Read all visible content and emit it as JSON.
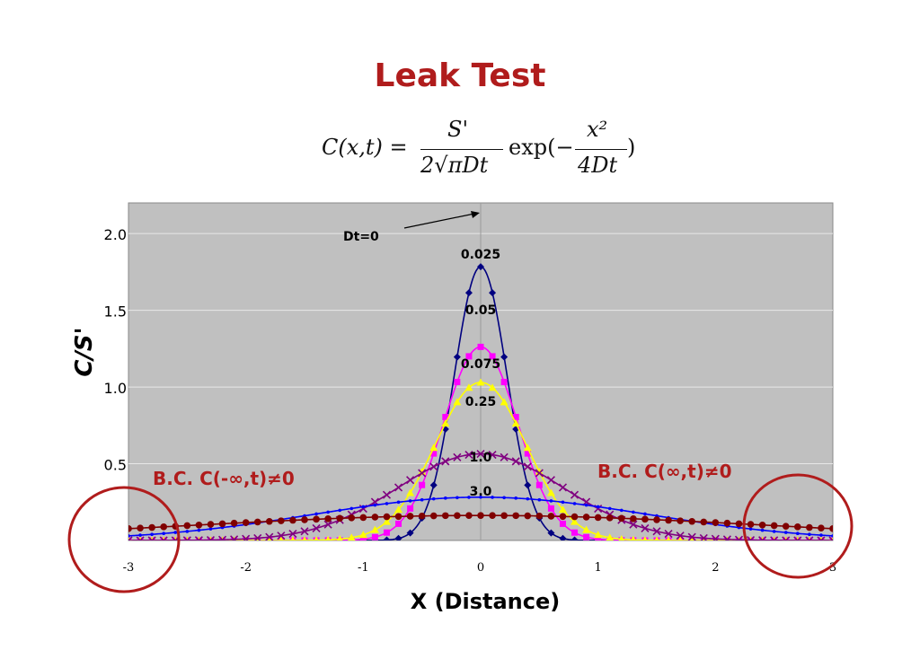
{
  "title": "Leak Test",
  "formula": {
    "lhs": "C(x,t) =",
    "numerator": "S'",
    "denominator": "2√πDt",
    "exp": "exp(−",
    "exp_numerator": "x²",
    "exp_denominator": "4Dt",
    "close": ")"
  },
  "colors": {
    "title": "#b01c1c",
    "annotation": "#b01c1c",
    "plot_bg": "#c0c0c0",
    "grid": "#e8e8e8"
  },
  "chart_data": {
    "type": "line",
    "xlabel": "X (Distance)",
    "ylabel": "C/S'",
    "xlim": [
      -3,
      3
    ],
    "ylim": [
      0,
      2
    ],
    "xticks": [
      "-3",
      "-2",
      "-1",
      "0",
      "1",
      "2",
      "3"
    ],
    "yticks": [
      "0.5",
      "1.0",
      "1.5",
      "2.0"
    ],
    "grid": true,
    "series": [
      {
        "name": "0.025",
        "dt": 0.025,
        "color": "#000080",
        "marker": "diamond"
      },
      {
        "name": "0.05",
        "dt": 0.05,
        "color": "#ff00ff",
        "marker": "square"
      },
      {
        "name": "0.075",
        "dt": 0.075,
        "color": "#ffff00",
        "marker": "triangle"
      },
      {
        "name": "0.25",
        "dt": 0.25,
        "color": "#800080",
        "marker": "x"
      },
      {
        "name": "1.0",
        "dt": 1.0,
        "color": "#0000ff",
        "marker": "dot"
      },
      {
        "name": "3.0",
        "dt": 3.0,
        "color": "#800000",
        "marker": "circle"
      }
    ],
    "annotations": {
      "dt_zero": "Dt=0",
      "bc_left": "B.C. C(-∞,t)≠0",
      "bc_right": "B.C.  C(∞,t)≠0"
    }
  }
}
